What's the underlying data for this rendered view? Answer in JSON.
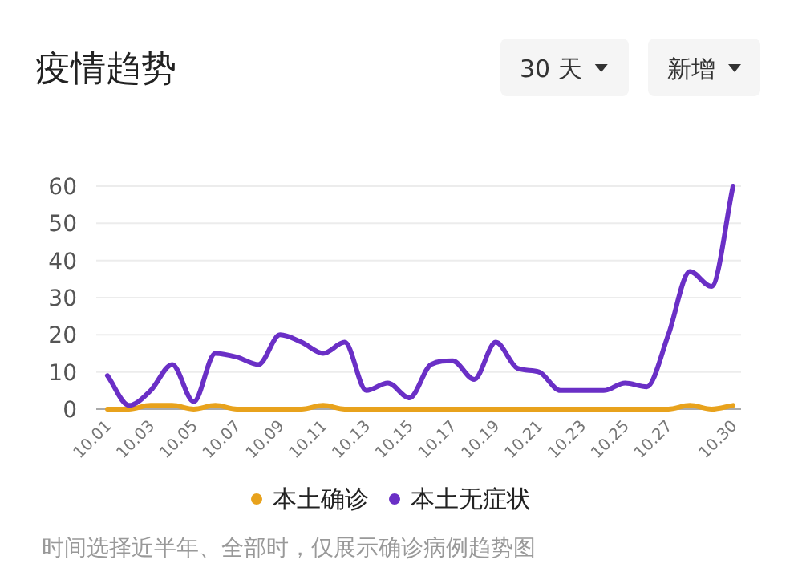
{
  "chart_data": {
    "type": "line",
    "title": "疫情趋势",
    "annotations": [
      "30 天",
      "新增",
      "时间选择近半年、全部时，仅展示确诊病例趋势图"
    ],
    "categories": [
      "10.01",
      null,
      "10.03",
      null,
      "10.05",
      null,
      "10.07",
      null,
      "10.09",
      null,
      "10.11",
      null,
      "10.13",
      null,
      "10.15",
      null,
      "10.17",
      null,
      "10.19",
      null,
      "10.21",
      null,
      "10.23",
      null,
      "10.25",
      null,
      "10.27",
      null,
      null,
      "10.30"
    ],
    "series": [
      {
        "name": "本土确诊",
        "color": "#e8a21c",
        "values": [
          0,
          0,
          1,
          1,
          0,
          1,
          0,
          0,
          0,
          0,
          1,
          0,
          0,
          0,
          0,
          0,
          0,
          0,
          0,
          0,
          0,
          0,
          0,
          0,
          0,
          0,
          0,
          1,
          0,
          1
        ]
      },
      {
        "name": "本土无症状",
        "color": "#6a2fc6",
        "values": [
          9,
          1,
          5,
          12,
          2,
          15,
          14,
          12,
          20,
          18,
          15,
          18,
          5,
          7,
          3,
          12,
          13,
          8,
          18,
          11,
          10,
          5,
          5,
          5,
          7,
          6,
          20,
          37,
          33,
          60
        ]
      }
    ],
    "ylim": [
      0,
      60
    ],
    "yticks": [
      0,
      10,
      20,
      30,
      40,
      50,
      60
    ],
    "grid": "y",
    "legend": "bottom",
    "marker": "none",
    "line_style": "solid"
  }
}
